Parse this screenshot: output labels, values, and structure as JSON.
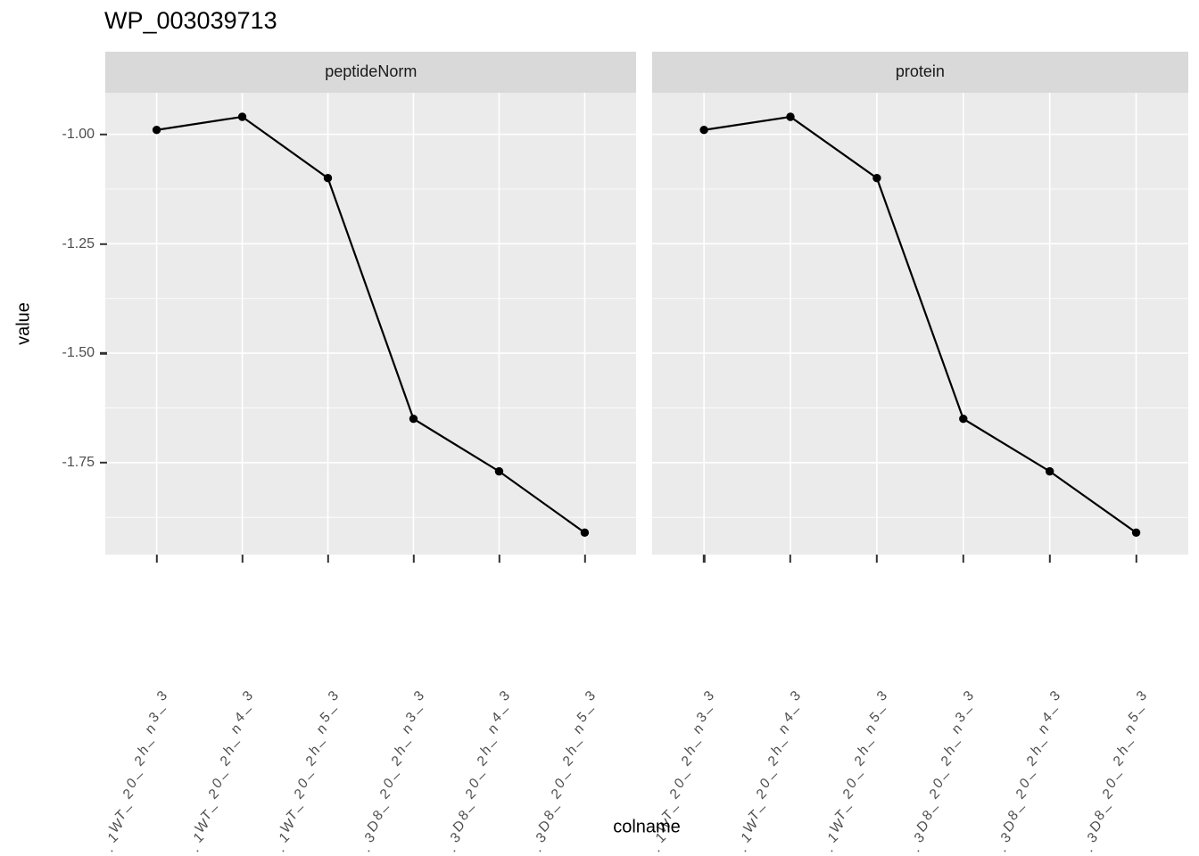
{
  "title": "WP_003039713",
  "chart_data": {
    "type": "line",
    "facets": [
      {
        "label": "peptideNorm"
      },
      {
        "label": "protein"
      }
    ],
    "categories": [
      ".1WT_20_2h_n3_3",
      ".1WT_20_2h_n4_3",
      ".1WT_20_2h_n5_3",
      ".3D8_20_2h_n3_3",
      ".3D8_20_2h_n4_3",
      ".3D8_20_2h_n5_3"
    ],
    "series": [
      {
        "name": "peptideNorm",
        "values": [
          -0.99,
          -0.96,
          -1.1,
          -1.65,
          -1.77,
          -1.91
        ]
      },
      {
        "name": "protein",
        "values": [
          -0.99,
          -0.96,
          -1.1,
          -1.65,
          -1.77,
          -1.91
        ]
      }
    ],
    "xlabel": "colname",
    "ylabel": "value",
    "yticks": [
      -1.0,
      -1.25,
      -1.5,
      -1.75
    ],
    "ytick_labels": [
      "-1.00",
      "-1.25",
      "-1.50",
      "-1.75"
    ],
    "ylim": [
      -1.959,
      -0.905
    ],
    "grid": true,
    "legend": "none",
    "colors": {
      "panel_background": "#ebebeb",
      "strip_background": "#d9d9d9",
      "gridline": "#ffffff",
      "line": "#000000",
      "point": "#000000",
      "axis_text": "#4d4d4d",
      "tick_mark": "#333333",
      "title_text": "#000000"
    }
  }
}
